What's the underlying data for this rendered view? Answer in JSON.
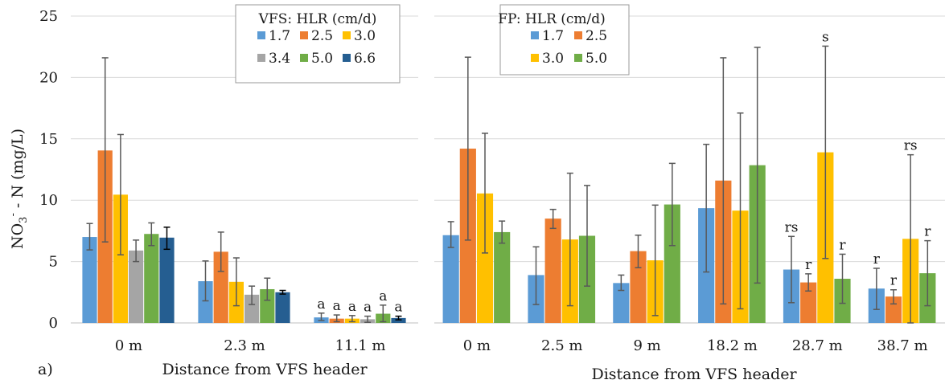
{
  "chart_data": [
    {
      "type": "bar",
      "panel_label": "a)",
      "xlabel": "Distance from VFS header",
      "ylabel_main": "NO",
      "ylabel_sub": "3",
      "ylabel_sup": "-",
      "ylabel_rest": " - N (mg/L)",
      "ylim": [
        0,
        25
      ],
      "yticks": [
        "0",
        "5",
        "10",
        "15",
        "20",
        "25"
      ],
      "grid": true,
      "legend": {
        "title": "VFS: HLR (cm/d)",
        "placement": "top-center"
      },
      "categories": [
        "0 m",
        "2.3 m",
        "11.1 m"
      ],
      "series": [
        {
          "name": "1.7",
          "color": "#5b9bd5",
          "values": [
            7.0,
            3.4,
            0.45
          ],
          "err_high": [
            8.1,
            5.05,
            0.8
          ],
          "err_low": [
            5.95,
            1.8,
            0.2
          ],
          "labels": [
            "",
            "",
            "a"
          ]
        },
        {
          "name": "2.5",
          "color": "#ed7d31",
          "values": [
            14.05,
            5.8,
            0.35
          ],
          "err_high": [
            21.6,
            7.4,
            0.65
          ],
          "err_low": [
            6.6,
            4.2,
            0.1
          ],
          "labels": [
            "",
            "",
            "a"
          ]
        },
        {
          "name": "3.0",
          "color": "#ffc000",
          "values": [
            10.45,
            3.35,
            0.35
          ],
          "err_high": [
            15.35,
            5.3,
            0.6
          ],
          "err_low": [
            5.55,
            1.4,
            0.1
          ],
          "labels": [
            "",
            "",
            "a"
          ]
        },
        {
          "name": "3.4",
          "color": "#a5a5a5",
          "values": [
            5.9,
            2.3,
            0.3
          ],
          "err_high": [
            6.75,
            3.0,
            0.55
          ],
          "err_low": [
            5.0,
            1.5,
            0.05
          ],
          "labels": [
            "",
            "",
            "a"
          ]
        },
        {
          "name": "5.0",
          "color": "#70ad47",
          "values": [
            7.25,
            2.75,
            0.75
          ],
          "err_high": [
            8.15,
            3.65,
            1.45
          ],
          "err_low": [
            6.3,
            1.85,
            0.1
          ],
          "labels": [
            "",
            "",
            "a"
          ]
        },
        {
          "name": "6.6",
          "color": "#255e91",
          "values": [
            6.95,
            2.5,
            0.4
          ],
          "err_high": [
            7.8,
            2.65,
            0.55
          ],
          "err_low": [
            6.0,
            2.35,
            0.25
          ],
          "labels": [
            "",
            "",
            "a"
          ]
        }
      ]
    },
    {
      "type": "bar",
      "xlabel": "Distance from VFS header",
      "ylim": [
        0,
        25
      ],
      "grid": true,
      "legend": {
        "title": "FP: HLR (cm/d)",
        "placement": "top-left"
      },
      "categories": [
        "0 m",
        "2.5 m",
        "9 m",
        "18.2 m",
        "28.7 m",
        "38.7 m"
      ],
      "series": [
        {
          "name": "1.7",
          "color": "#5b9bd5",
          "values": [
            7.15,
            3.9,
            3.25,
            9.35,
            4.35,
            2.8
          ],
          "err_high": [
            8.25,
            6.2,
            3.9,
            14.55,
            7.05,
            4.45
          ],
          "err_low": [
            6.15,
            1.5,
            2.65,
            4.15,
            1.65,
            1.1
          ],
          "labels": [
            "",
            "",
            "",
            "",
            "rs",
            "r"
          ]
        },
        {
          "name": "2.5",
          "color": "#ed7d31",
          "values": [
            14.2,
            8.5,
            5.85,
            11.6,
            3.3,
            2.15
          ],
          "err_high": [
            21.65,
            9.25,
            7.15,
            21.6,
            4.0,
            2.7
          ],
          "err_low": [
            6.75,
            7.7,
            4.5,
            1.55,
            2.6,
            1.55
          ],
          "labels": [
            "",
            "",
            "",
            "",
            "r",
            "r"
          ]
        },
        {
          "name": "3.0",
          "color": "#ffc000",
          "values": [
            10.55,
            6.8,
            5.1,
            9.15,
            13.9,
            6.85
          ],
          "err_high": [
            15.45,
            12.2,
            9.6,
            17.1,
            22.55,
            13.7
          ],
          "err_low": [
            5.7,
            1.4,
            0.6,
            1.15,
            5.25,
            0.0
          ],
          "labels": [
            "",
            "",
            "",
            "",
            "s",
            "rs"
          ]
        },
        {
          "name": "5.0",
          "color": "#70ad47",
          "values": [
            7.4,
            7.1,
            9.65,
            12.85,
            3.6,
            4.05
          ],
          "err_high": [
            8.3,
            11.2,
            13.0,
            22.45,
            5.6,
            6.7
          ],
          "err_low": [
            6.5,
            3.0,
            6.3,
            3.25,
            1.6,
            1.4
          ],
          "labels": [
            "",
            "",
            "",
            "",
            "r",
            "r"
          ]
        }
      ]
    }
  ]
}
